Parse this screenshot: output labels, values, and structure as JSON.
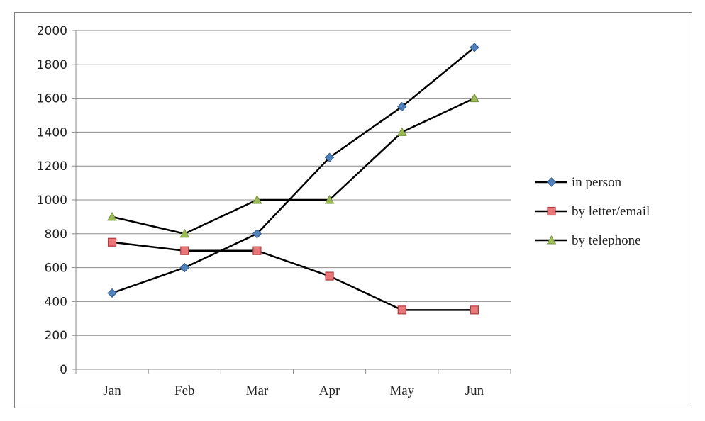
{
  "chart_data": {
    "type": "line",
    "categories": [
      "Jan",
      "Feb",
      "Mar",
      "Apr",
      "May",
      "Jun"
    ],
    "series": [
      {
        "name": "in person",
        "values": [
          450,
          600,
          800,
          1250,
          1550,
          1900
        ],
        "marker": "diamond",
        "marker_color": "#4f81bd",
        "marker_stroke": "#3a5f8f"
      },
      {
        "name": "by letter/email",
        "values": [
          750,
          700,
          700,
          550,
          350,
          350
        ],
        "marker": "square",
        "marker_color": "#e9787a",
        "marker_stroke": "#b23a3c"
      },
      {
        "name": "by telephone",
        "values": [
          900,
          800,
          1000,
          1000,
          1400,
          1600
        ],
        "marker": "triangle",
        "marker_color": "#9bbb59",
        "marker_stroke": "#76923c"
      }
    ],
    "ylim": [
      0,
      2000
    ],
    "yticks": [
      0,
      200,
      400,
      600,
      800,
      1000,
      1200,
      1400,
      1600,
      1800,
      2000
    ],
    "grid": true,
    "legend_position": "right",
    "line_color": "#000000",
    "title": "",
    "xlabel": "",
    "ylabel": ""
  }
}
